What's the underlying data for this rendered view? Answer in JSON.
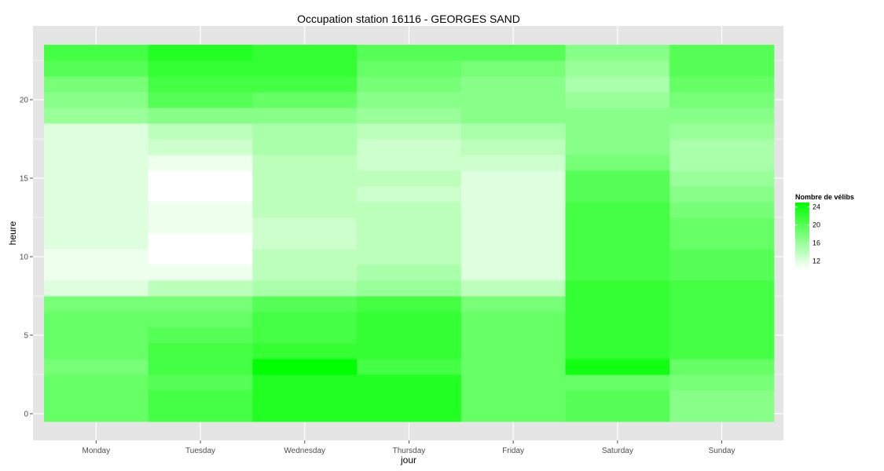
{
  "chart_data": {
    "type": "heatmap",
    "title": "Occupation station 16116 - GEORGES SAND",
    "xlabel": "jour",
    "ylabel": "heure",
    "x_categories": [
      "Monday",
      "Tuesday",
      "Wednesday",
      "Thursday",
      "Friday",
      "Saturday",
      "Sunday"
    ],
    "y_values": [
      0,
      1,
      2,
      3,
      4,
      5,
      6,
      7,
      8,
      9,
      10,
      11,
      12,
      13,
      14,
      15,
      16,
      17,
      18,
      19,
      20,
      21,
      22,
      23
    ],
    "y_ticks": [
      0,
      5,
      10,
      15,
      20
    ],
    "y_tick_labels": [
      "0",
      "5",
      "10",
      "15",
      "20"
    ],
    "ylim": [
      -0.5,
      23.5
    ],
    "values": [
      [
        19,
        21,
        23,
        23,
        19,
        20,
        17
      ],
      [
        19,
        21,
        23,
        23,
        19,
        20,
        17
      ],
      [
        19,
        20,
        23,
        23,
        19,
        19,
        18
      ],
      [
        18,
        21,
        25,
        21,
        19,
        24,
        19
      ],
      [
        19,
        21,
        22,
        22,
        19,
        22,
        21
      ],
      [
        19,
        20,
        21,
        22,
        19,
        22,
        21
      ],
      [
        19,
        19,
        21,
        22,
        19,
        22,
        21
      ],
      [
        18,
        18,
        20,
        21,
        18,
        22,
        21
      ],
      [
        12,
        14,
        15,
        16,
        14,
        22,
        21
      ],
      [
        11,
        11,
        14,
        15,
        12,
        21,
        20
      ],
      [
        11,
        10,
        14,
        14,
        12,
        21,
        20
      ],
      [
        12,
        10,
        13,
        14,
        12,
        21,
        19
      ],
      [
        12,
        11,
        13,
        14,
        12,
        21,
        19
      ],
      [
        12,
        11,
        14,
        14,
        12,
        21,
        18
      ],
      [
        12,
        10,
        14,
        13,
        12,
        20,
        17
      ],
      [
        12,
        10,
        14,
        14,
        12,
        20,
        16
      ],
      [
        12,
        11,
        14,
        13,
        13,
        18,
        15
      ],
      [
        12,
        13,
        15,
        13,
        14,
        17,
        15
      ],
      [
        12,
        14,
        15,
        14,
        15,
        17,
        16
      ],
      [
        16,
        17,
        17,
        16,
        17,
        17,
        17
      ],
      [
        17,
        20,
        19,
        17,
        17,
        16,
        18
      ],
      [
        18,
        21,
        21,
        18,
        17,
        15,
        19
      ],
      [
        20,
        22,
        22,
        19,
        18,
        16,
        20
      ],
      [
        21,
        23,
        22,
        20,
        20,
        17,
        20
      ]
    ],
    "color_scale": {
      "title": "Nombre de vélibs",
      "low_color": "#ffffff",
      "high_color": "#00ff00",
      "min": 10,
      "max": 25,
      "ticks": [
        12,
        16,
        20,
        24
      ],
      "tick_labels": [
        "12",
        "16",
        "20",
        "24"
      ]
    },
    "background_color": "#e5e5e5",
    "grid_color": "#ffffff",
    "grid": true,
    "legend_position": "right"
  }
}
